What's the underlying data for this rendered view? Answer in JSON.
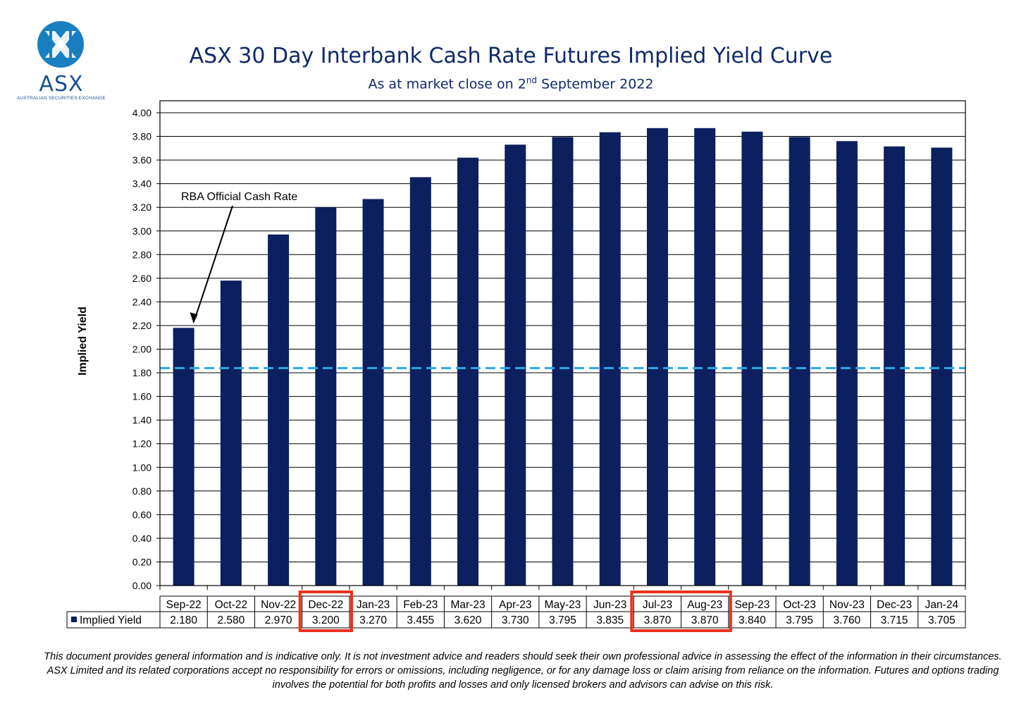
{
  "logo": {
    "text": "ASX",
    "subtext": "AUSTRALIAN SECURITIES EXCHANGE",
    "color": "#1a7fc1"
  },
  "header": {
    "title": "ASX 30 Day Interbank Cash Rate Futures Implied Yield Curve",
    "subtitle_before": "As at market close on 2",
    "subtitle_sup": "nd",
    "subtitle_after": " September 2022"
  },
  "chart_data": {
    "type": "bar",
    "ylabel": "Implied Yield",
    "ylim": [
      0,
      4
    ],
    "ytick_step": 0.2,
    "yticks": [
      "0.00",
      "0.20",
      "0.40",
      "0.60",
      "0.80",
      "1.00",
      "1.20",
      "1.40",
      "1.60",
      "1.80",
      "2.00",
      "2.20",
      "2.40",
      "2.60",
      "2.80",
      "3.00",
      "3.20",
      "3.40",
      "3.60",
      "3.80",
      "4.00"
    ],
    "grid": true,
    "categories": [
      "Sep-22",
      "Oct-22",
      "Nov-22",
      "Dec-22",
      "Jan-23",
      "Feb-23",
      "Mar-23",
      "Apr-23",
      "May-23",
      "Jun-23",
      "Jul-23",
      "Aug-23",
      "Sep-23",
      "Oct-23",
      "Nov-23",
      "Dec-23",
      "Jan-24"
    ],
    "series": [
      {
        "name": "Implied Yield",
        "values": [
          2.18,
          2.58,
          2.97,
          3.2,
          3.27,
          3.455,
          3.62,
          3.73,
          3.795,
          3.835,
          3.87,
          3.87,
          3.84,
          3.795,
          3.76,
          3.715,
          3.705
        ],
        "value_labels": [
          "2.180",
          "2.580",
          "2.970",
          "3.200",
          "3.270",
          "3.455",
          "3.620",
          "3.730",
          "3.795",
          "3.835",
          "3.870",
          "3.870",
          "3.840",
          "3.795",
          "3.760",
          "3.715",
          "3.705"
        ],
        "color": "#0c1f5e"
      }
    ],
    "reference_line": {
      "value": 1.84,
      "style": "dashed",
      "color": "#29a8e8"
    },
    "annotation": {
      "text": "RBA Official Cash Rate",
      "points_to": "Sep-22"
    },
    "highlighted_categories": [
      [
        "Dec-22"
      ],
      [
        "Jul-23",
        "Aug-23"
      ]
    ],
    "highlight_color": "#e8321e"
  },
  "disclaimer": "This document provides general information and is indicative only. It is not investment advice and readers should seek their own professional advice in assessing the effect of the information in their circumstances. ASX Limited and its related corporations accept no responsibility for errors or omissions, including negligence, or for any damage loss or claim arising from reliance on the information. Futures and options trading involves the potential for both profits and losses and only licensed brokers and advisors can advise on this risk."
}
